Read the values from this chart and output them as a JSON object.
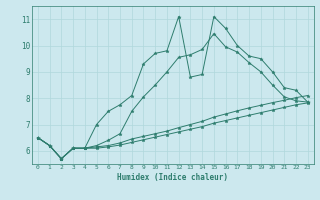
{
  "xlabel": "Humidex (Indice chaleur)",
  "bg_color": "#cce8ee",
  "line_color": "#2e7d6e",
  "grid_color": "#b0d8dc",
  "xlim": [
    -0.5,
    23.5
  ],
  "ylim": [
    5.5,
    11.5
  ],
  "xticks": [
    0,
    1,
    2,
    3,
    4,
    5,
    6,
    7,
    8,
    9,
    10,
    11,
    12,
    13,
    14,
    15,
    16,
    17,
    18,
    19,
    20,
    21,
    22,
    23
  ],
  "yticks": [
    6,
    7,
    8,
    9,
    10,
    11
  ],
  "series": [
    [
      6.5,
      6.2,
      5.7,
      6.1,
      6.1,
      7.0,
      7.5,
      7.75,
      8.1,
      9.3,
      9.7,
      9.8,
      11.1,
      8.8,
      8.9,
      11.1,
      10.65,
      10.0,
      9.6,
      9.5,
      9.0,
      8.4,
      8.3,
      7.85
    ],
    [
      6.5,
      6.2,
      5.7,
      6.1,
      6.1,
      6.2,
      6.4,
      6.65,
      7.5,
      8.05,
      8.5,
      9.0,
      9.55,
      9.65,
      9.85,
      10.45,
      9.95,
      9.75,
      9.35,
      9.0,
      8.5,
      8.05,
      7.9,
      7.85
    ],
    [
      6.5,
      6.2,
      5.7,
      6.1,
      6.1,
      6.15,
      6.2,
      6.3,
      6.45,
      6.55,
      6.65,
      6.75,
      6.88,
      7.0,
      7.12,
      7.28,
      7.4,
      7.52,
      7.63,
      7.73,
      7.83,
      7.92,
      8.02,
      8.1
    ],
    [
      6.5,
      6.2,
      5.7,
      6.1,
      6.1,
      6.1,
      6.15,
      6.22,
      6.32,
      6.42,
      6.52,
      6.62,
      6.72,
      6.82,
      6.92,
      7.05,
      7.15,
      7.25,
      7.35,
      7.45,
      7.55,
      7.65,
      7.75,
      7.82
    ]
  ]
}
